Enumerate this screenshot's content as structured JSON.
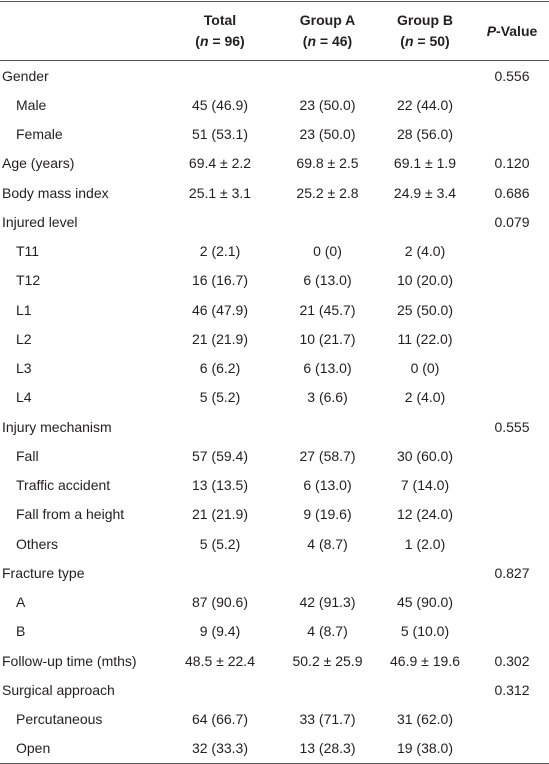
{
  "table": {
    "header": [
      {
        "line1": "Total",
        "line2": [
          "(",
          "n",
          " = 96)"
        ]
      },
      {
        "line1": "Group A",
        "line2": [
          "(",
          "n",
          " = 46)"
        ]
      },
      {
        "line1": "Group B",
        "line2": [
          "(",
          "n",
          " = 50)"
        ]
      },
      {
        "line1": [
          "P",
          "-Value"
        ]
      }
    ],
    "sections": [
      {
        "label": "Gender",
        "p": "0.556",
        "items": [
          {
            "label": "Male",
            "values": [
              "45 (46.9)",
              "23 (50.0)",
              "22 (44.0)"
            ]
          },
          {
            "label": "Female",
            "values": [
              "51 (53.1)",
              "23 (50.0)",
              "28 (56.0)"
            ]
          }
        ]
      },
      {
        "label": "Age (years)",
        "values": [
          "69.4 ± 2.2",
          "69.8 ± 2.5",
          "69.1 ± 1.9"
        ],
        "p": "0.120"
      },
      {
        "label": "Body mass index",
        "values": [
          "25.1 ± 3.1",
          "25.2 ± 2.8",
          "24.9 ± 3.4"
        ],
        "p": "0.686"
      },
      {
        "label": "Injured level",
        "p": "0.079",
        "items": [
          {
            "label": "T11",
            "values": [
              "2 (2.1)",
              "0 (0)",
              "2 (4.0)"
            ]
          },
          {
            "label": "T12",
            "values": [
              "16 (16.7)",
              "6 (13.0)",
              "10 (20.0)"
            ]
          },
          {
            "label": "L1",
            "values": [
              "46 (47.9)",
              "21 (45.7)",
              "25 (50.0)"
            ]
          },
          {
            "label": "L2",
            "values": [
              "21 (21.9)",
              "10 (21.7)",
              "11 (22.0)"
            ]
          },
          {
            "label": "L3",
            "values": [
              "6 (6.2)",
              "6 (13.0)",
              "0 (0)"
            ]
          },
          {
            "label": "L4",
            "values": [
              "5 (5.2)",
              "3 (6.6)",
              "2 (4.0)"
            ]
          }
        ]
      },
      {
        "label": "Injury mechanism",
        "p": "0.555",
        "items": [
          {
            "label": "Fall",
            "values": [
              "57 (59.4)",
              "27 (58.7)",
              "30 (60.0)"
            ]
          },
          {
            "label": "Traffic accident",
            "values": [
              "13 (13.5)",
              "6 (13.0)",
              "7 (14.0)"
            ]
          },
          {
            "label": "Fall from a height",
            "values": [
              "21 (21.9)",
              "9 (19.6)",
              "12 (24.0)"
            ]
          },
          {
            "label": "Others",
            "values": [
              "5 (5.2)",
              "4 (8.7)",
              "1 (2.0)"
            ]
          }
        ]
      },
      {
        "label": "Fracture type",
        "p": "0.827",
        "items": [
          {
            "label": "A",
            "values": [
              "87 (90.6)",
              "42 (91.3)",
              "45 (90.0)"
            ]
          },
          {
            "label": "B",
            "values": [
              "9 (9.4)",
              "4 (8.7)",
              "5 (10.0)"
            ]
          }
        ]
      },
      {
        "label": "Follow-up time (mths)",
        "values": [
          "48.5 ± 22.4",
          "50.2 ± 25.9",
          "46.9 ± 19.6"
        ],
        "p": "0.302"
      },
      {
        "label": "Surgical approach",
        "p": "0.312",
        "items": [
          {
            "label": "Percutaneous",
            "values": [
              "64 (66.7)",
              "33 (71.7)",
              "31 (62.0)"
            ]
          },
          {
            "label": "Open",
            "values": [
              "32 (33.3)",
              "13 (28.3)",
              "19 (38.0)"
            ]
          }
        ]
      }
    ]
  }
}
